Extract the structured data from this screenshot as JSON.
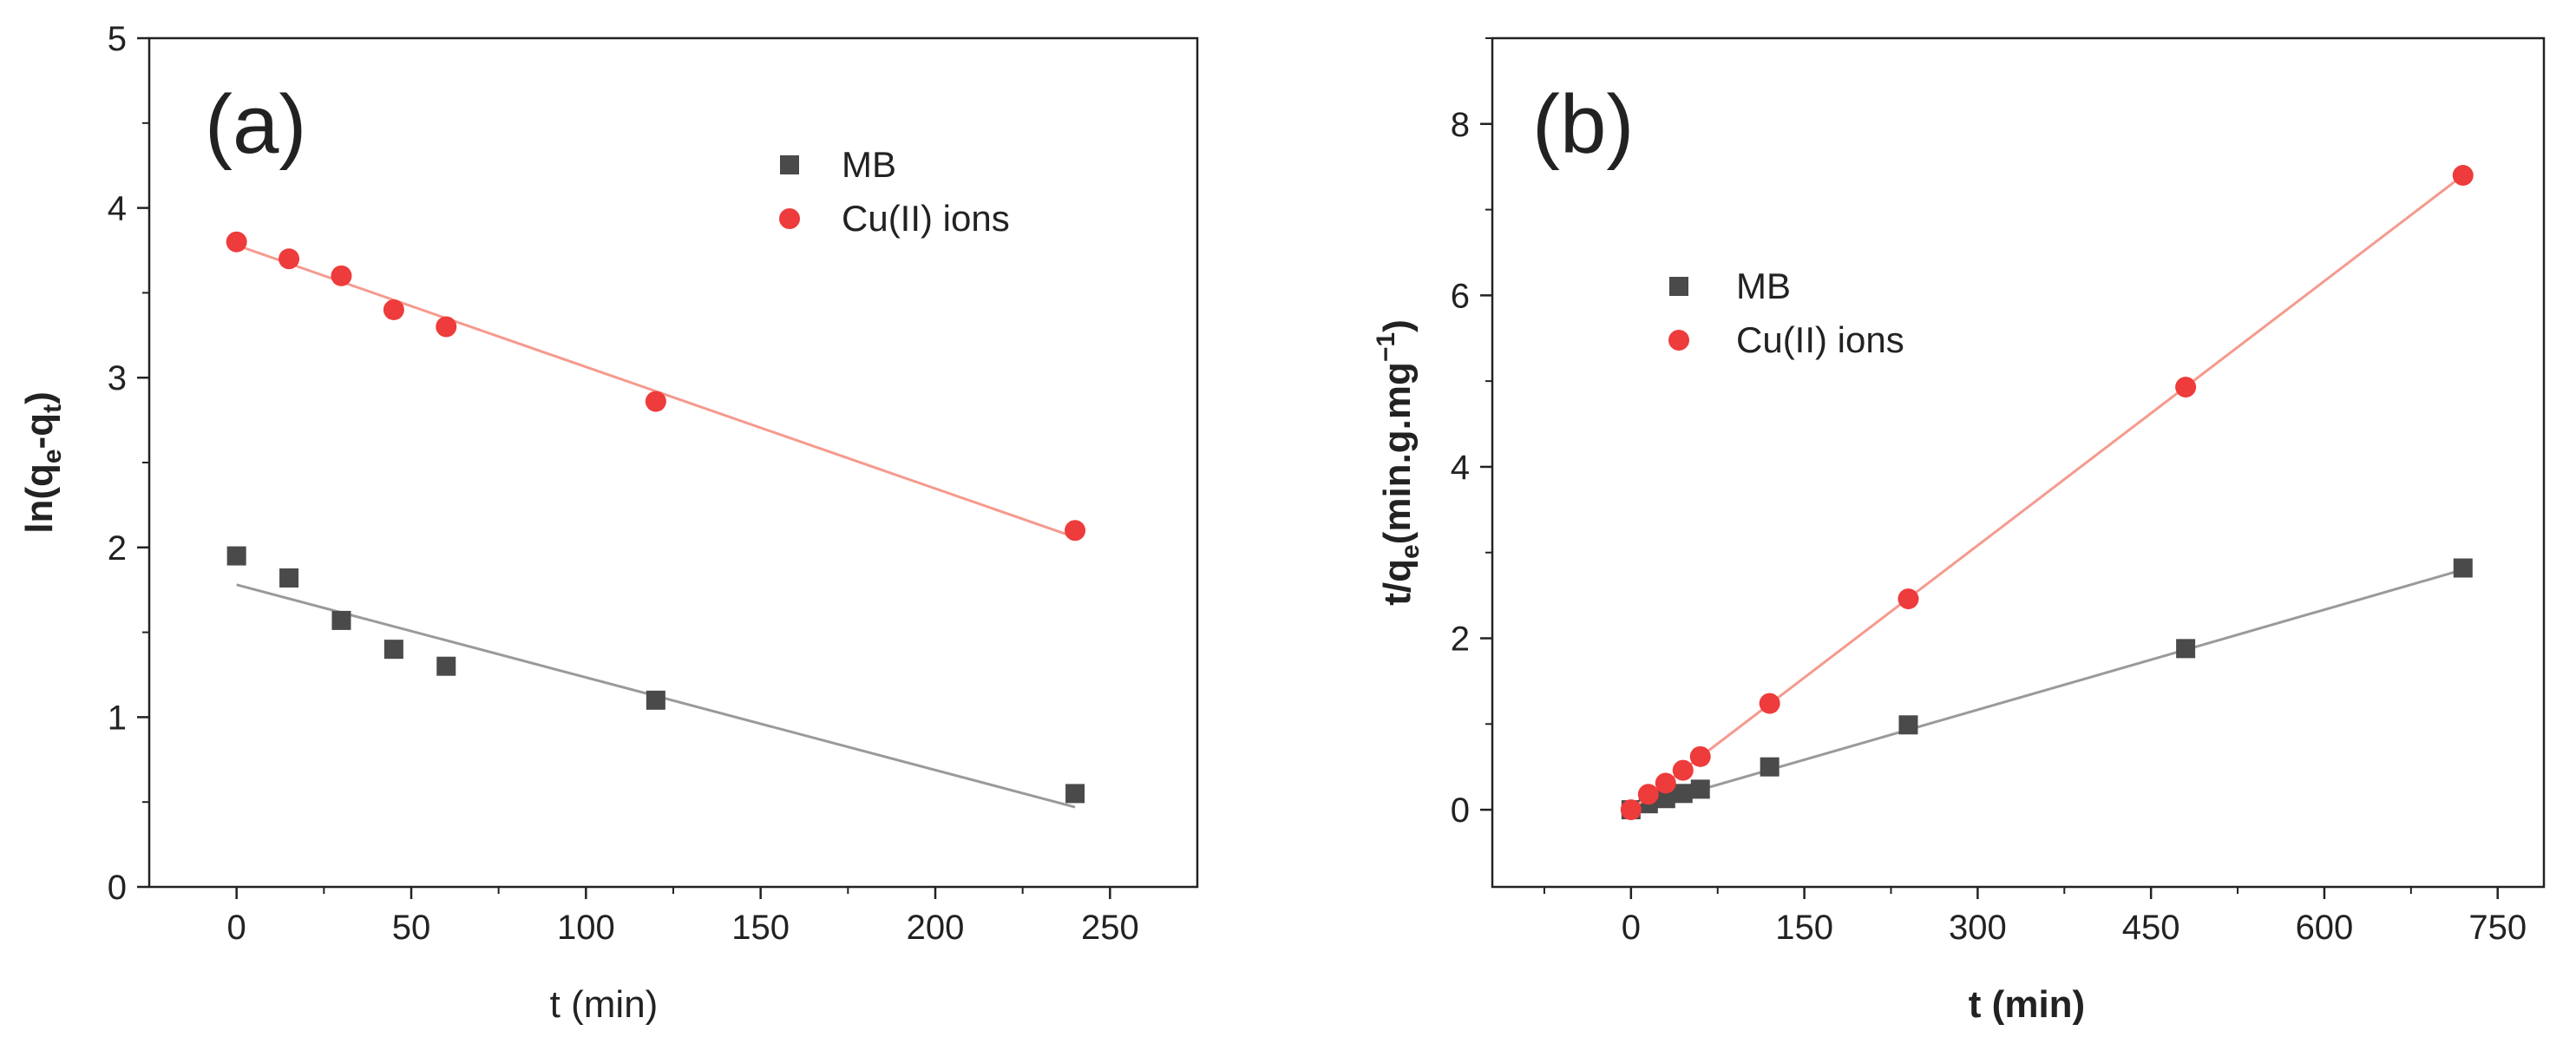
{
  "chart_data": [
    {
      "type": "scatter",
      "panel_label": "(a)",
      "xlabel": "t (min)",
      "ylabel_parts": [
        "ln(q",
        "e",
        "-q",
        "t",
        ")"
      ],
      "xlim": [
        -25,
        275
      ],
      "ylim": [
        0,
        5
      ],
      "xticks": [
        0,
        50,
        100,
        150,
        200,
        250
      ],
      "yticks": [
        0,
        1,
        2,
        3,
        4,
        5
      ],
      "grid": false,
      "legend_placement": "top-right",
      "series": [
        {
          "name": "MB",
          "marker": "square",
          "color": "#4a4a4a",
          "line_color": "#9a9a9a",
          "x": [
            0,
            15,
            30,
            45,
            60,
            120,
            240
          ],
          "y": [
            1.95,
            1.82,
            1.57,
            1.4,
            1.3,
            1.1,
            0.55
          ],
          "fit": {
            "x": [
              0,
              240
            ],
            "y": [
              1.78,
              0.47
            ]
          }
        },
        {
          "name": "Cu(II) ions",
          "marker": "circle",
          "color": "#ee3b3b",
          "line_color": "#f59a8e",
          "x": [
            0,
            15,
            30,
            45,
            60,
            120,
            240
          ],
          "y": [
            3.8,
            3.7,
            3.6,
            3.4,
            3.3,
            2.86,
            2.1
          ],
          "fit": {
            "x": [
              0,
              240
            ],
            "y": [
              3.78,
              2.06
            ]
          }
        }
      ]
    },
    {
      "type": "scatter",
      "panel_label": "(b)",
      "xlabel": "t (min)",
      "ylabel_parts": [
        "t/q",
        "e",
        "(min.g.mg",
        "−1",
        ")"
      ],
      "xlim": [
        -120,
        790
      ],
      "ylim": [
        -0.9,
        9
      ],
      "xticks": [
        0,
        150,
        300,
        450,
        600,
        750
      ],
      "yticks": [
        0,
        2,
        4,
        6,
        8
      ],
      "grid": false,
      "legend_placement": "upper-left",
      "series": [
        {
          "name": "MB",
          "marker": "square",
          "color": "#4a4a4a",
          "line_color": "#9a9a9a",
          "x": [
            0,
            15,
            30,
            45,
            60,
            120,
            240,
            480,
            720
          ],
          "y": [
            0.0,
            0.07,
            0.13,
            0.19,
            0.24,
            0.5,
            0.99,
            1.88,
            2.82
          ],
          "fit": {
            "x": [
              0,
              720
            ],
            "y": [
              0.0,
              2.8
            ]
          }
        },
        {
          "name": "Cu(II) ions",
          "marker": "circle",
          "color": "#ee3b3b",
          "line_color": "#f59a8e",
          "x": [
            0,
            15,
            30,
            45,
            60,
            120,
            240,
            480,
            720
          ],
          "y": [
            0.0,
            0.18,
            0.31,
            0.46,
            0.62,
            1.24,
            2.46,
            4.93,
            7.4
          ],
          "fit": {
            "x": [
              0,
              720
            ],
            "y": [
              0.0,
              7.4
            ]
          }
        }
      ]
    }
  ]
}
